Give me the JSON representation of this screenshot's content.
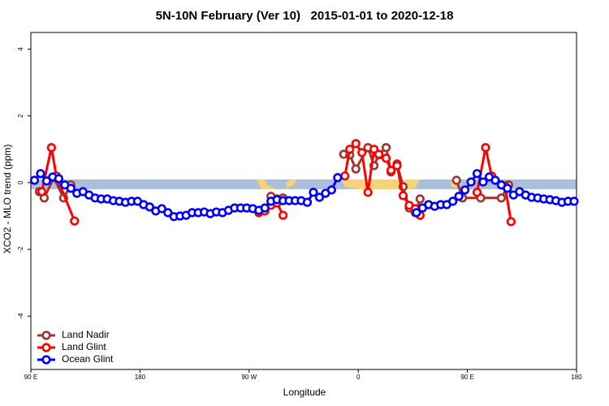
{
  "chart_data": {
    "type": "line",
    "title": "5N-10N February (Ver 10)   2015-01-01 to 2020-12-18",
    "x_label": "Longitude",
    "y_label": "XCO2 - MLO trend (ppm)",
    "xlim": [
      90,
      540
    ],
    "ylim": [
      -5.6,
      4.5
    ],
    "xticks": [
      {
        "value": 90,
        "label": "90 E"
      },
      {
        "value": 180,
        "label": "180"
      },
      {
        "value": 270,
        "label": "90 W"
      },
      {
        "value": 360,
        "label": "0"
      },
      {
        "value": 450,
        "label": "90 E"
      },
      {
        "value": 540,
        "label": "180"
      }
    ],
    "yticks": [
      -4,
      -2,
      0,
      2,
      4
    ],
    "legend": "bottom-left",
    "series": [
      {
        "name": "Land Nadir",
        "color": "#a0342f",
        "x": [
          97,
          101,
          109,
          117,
          123,
          200,
          288,
          293,
          298,
          370,
          348,
          353,
          358,
          368,
          373,
          377,
          383,
          387,
          392,
          397,
          402,
          407,
          411,
          450,
          441,
          446,
          461,
          478,
          484
        ],
        "values": [
          -0.27,
          -0.46,
          0.15,
          -0.46,
          -0.07,
          null,
          -0.41,
          -0.49,
          -0.46,
          null,
          0.85,
          0.83,
          0.41,
          1.05,
          0.51,
          0.83,
          1.05,
          0.32,
          0.56,
          -0.12,
          -0.76,
          -0.9,
          -0.49,
          null,
          0.07,
          -0.46,
          -0.46,
          -0.46,
          -0.07
        ]
      },
      {
        "name": "Land Glint",
        "color": "#ff0000",
        "x": [
          99,
          107,
          111,
          126,
          200,
          278,
          283,
          288,
          293,
          298,
          370,
          349,
          353,
          358,
          363,
          368,
          373,
          377,
          383,
          387,
          392,
          397,
          402,
          407,
          411,
          500,
          458,
          465,
          470,
          481,
          486
        ],
        "values": [
          -0.27,
          1.05,
          0.2,
          -1.15,
          null,
          -0.9,
          -0.85,
          -0.68,
          -0.61,
          -0.98,
          null,
          0.2,
          1.0,
          1.17,
          0.9,
          -0.29,
          1.0,
          0.85,
          0.73,
          0.37,
          0.51,
          -0.39,
          -0.68,
          -0.78,
          -0.98,
          null,
          -0.29,
          1.05,
          0.2,
          -0.1,
          -1.17
        ]
      },
      {
        "name": "Ocean Glint",
        "color": "#0000ff",
        "x": [
          93,
          98,
          103,
          108,
          113,
          118,
          123,
          128,
          133,
          138,
          143,
          148,
          153,
          158,
          163,
          168,
          173,
          178,
          183,
          188,
          193,
          198,
          203,
          208,
          213,
          218,
          223,
          228,
          233,
          238,
          243,
          248,
          253,
          258,
          263,
          268,
          273,
          278,
          283,
          288,
          293,
          298,
          303,
          308,
          313,
          318,
          323,
          328,
          333,
          338,
          343,
          375,
          408,
          413,
          418,
          423,
          428,
          433,
          438,
          443,
          448,
          453,
          458,
          463,
          468,
          473,
          478,
          483,
          488,
          493,
          498,
          503,
          508,
          513,
          518,
          523,
          528,
          533,
          538
        ],
        "values": [
          0.07,
          0.27,
          0.05,
          0.17,
          0.12,
          -0.07,
          -0.17,
          -0.32,
          -0.27,
          -0.37,
          -0.46,
          -0.49,
          -0.49,
          -0.54,
          -0.56,
          -0.59,
          -0.56,
          -0.56,
          -0.66,
          -0.73,
          -0.85,
          -0.78,
          -0.9,
          -1.02,
          -1.0,
          -0.98,
          -0.9,
          -0.9,
          -0.88,
          -0.93,
          -0.88,
          -0.9,
          -0.83,
          -0.76,
          -0.76,
          -0.76,
          -0.78,
          -0.83,
          -0.76,
          -0.56,
          -0.51,
          -0.54,
          -0.54,
          -0.54,
          -0.54,
          -0.59,
          -0.29,
          -0.44,
          -0.32,
          -0.22,
          0.15,
          null,
          -0.9,
          -0.76,
          -0.66,
          -0.71,
          -0.66,
          -0.66,
          -0.56,
          -0.41,
          -0.22,
          0.02,
          0.27,
          0.02,
          0.17,
          0.07,
          -0.07,
          -0.17,
          -0.37,
          -0.27,
          -0.37,
          -0.44,
          -0.46,
          -0.49,
          -0.51,
          -0.54,
          -0.59,
          -0.56,
          -0.56
        ]
      }
    ]
  }
}
